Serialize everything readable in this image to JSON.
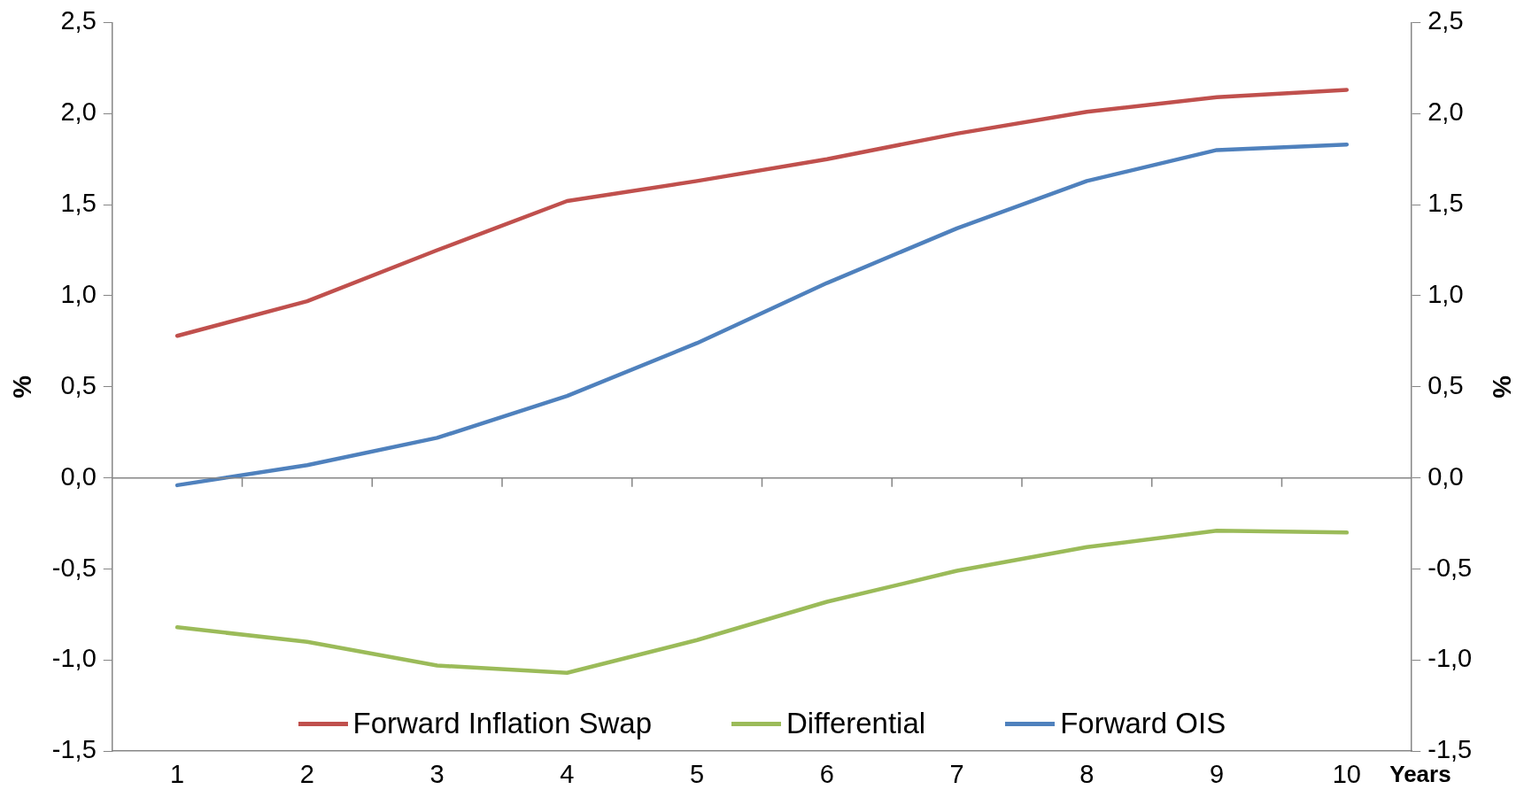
{
  "chart_data": {
    "type": "line",
    "xlabel": "Years",
    "ylabel": "%",
    "y2label": "%",
    "categories": [
      "1",
      "2",
      "3",
      "4",
      "5",
      "6",
      "7",
      "8",
      "9",
      "10"
    ],
    "series": [
      {
        "name": "Forward Inflation Swap",
        "color": "#c0504d",
        "values": [
          0.78,
          0.97,
          1.25,
          1.52,
          1.63,
          1.75,
          1.89,
          2.01,
          2.09,
          2.13
        ]
      },
      {
        "name": "Differential",
        "color": "#9bbb59",
        "values": [
          -0.82,
          -0.9,
          -1.03,
          -1.07,
          -0.89,
          -0.68,
          -0.51,
          -0.38,
          -0.29,
          -0.3
        ]
      },
      {
        "name": "Forward OIS",
        "color": "#4f81bd",
        "values": [
          -0.04,
          0.07,
          0.22,
          0.45,
          0.74,
          1.07,
          1.37,
          1.63,
          1.8,
          1.83
        ]
      }
    ],
    "ylim": [
      -1.5,
      2.5
    ],
    "yticks": [
      {
        "value": -1.5,
        "label": "-1,5"
      },
      {
        "value": -1,
        "label": "-1,0"
      },
      {
        "value": -0.5,
        "label": "-0,5"
      },
      {
        "value": 0,
        "label": "0,0"
      },
      {
        "value": 0.5,
        "label": "0,5"
      },
      {
        "value": 1,
        "label": "1,0"
      },
      {
        "value": 1.5,
        "label": "1,5"
      },
      {
        "value": 2,
        "label": "2,0"
      },
      {
        "value": 2.5,
        "label": "2,5"
      }
    ],
    "y2lim": [
      -1.5,
      2.5
    ],
    "y2ticks": [
      {
        "value": -1.5,
        "label": "-1,5"
      },
      {
        "value": -1,
        "label": "-1,0"
      },
      {
        "value": -0.5,
        "label": "-0,5"
      },
      {
        "value": 0,
        "label": "0,0"
      },
      {
        "value": 0.5,
        "label": "0,5"
      },
      {
        "value": 1,
        "label": "1,0"
      },
      {
        "value": 1.5,
        "label": "1,5"
      },
      {
        "value": 2,
        "label": "2,0"
      },
      {
        "value": 2.5,
        "label": "2,5"
      }
    ],
    "ref_lines": [
      {
        "axis": "y",
        "value": 0,
        "color": "#868686"
      }
    ],
    "grid": false,
    "legend": "bottom",
    "marker": "none",
    "line_style": "solid"
  }
}
